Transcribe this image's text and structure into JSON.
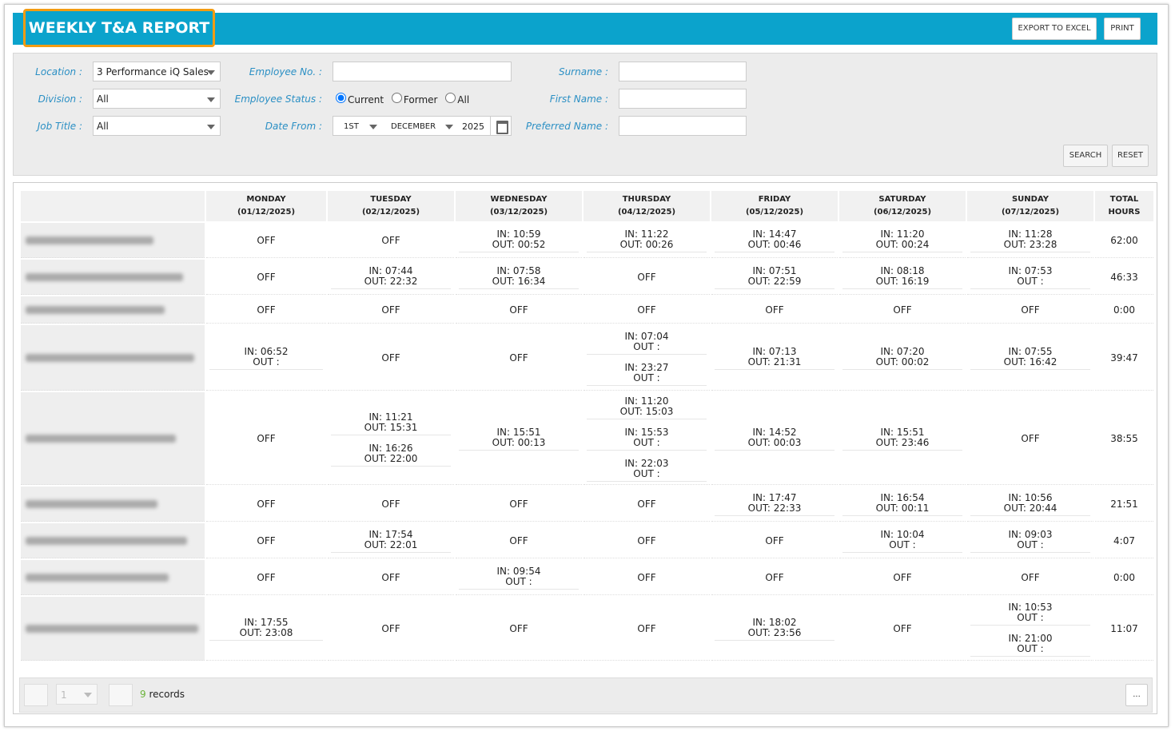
{
  "header": {
    "title": "WEEKLY T&A REPORT",
    "buttons": [
      "EXPORT TO EXCEL",
      "PRINT"
    ]
  },
  "filters": {
    "location": {
      "label": "Location :",
      "value": "3 Performance iQ Sales"
    },
    "division": {
      "label": "Division :",
      "value": "All"
    },
    "job_title": {
      "label": "Job Title :",
      "value": "All"
    },
    "employee_no": {
      "label": "Employee No. :"
    },
    "employee_status": {
      "label": "Employee Status :",
      "options": [
        "Current",
        "Former",
        "All"
      ]
    },
    "date_from": {
      "label": "Date From :",
      "day": "1ST",
      "month": "DECEMBER",
      "year": "2025"
    },
    "surname": {
      "label": "Surname :"
    },
    "first_name": {
      "label": "First Name :"
    },
    "preferred_name": {
      "label": "Preferred Name :"
    },
    "buttons": [
      "SEARCH",
      "RESET"
    ]
  },
  "table": {
    "columns": [
      {
        "day": "MONDAY",
        "date": "(01/12/2025)"
      },
      {
        "day": "TUESDAY",
        "date": "(02/12/2025)"
      },
      {
        "day": "WEDNESDAY",
        "date": "(03/12/2025)"
      },
      {
        "day": "THURSDAY",
        "date": "(04/12/2025)"
      },
      {
        "day": "FRIDAY",
        "date": "(05/12/2025)"
      },
      {
        "day": "SATURDAY",
        "date": "(06/12/2025)"
      },
      {
        "day": "SUNDAY",
        "date": "(07/12/2025)"
      }
    ],
    "total_header": "TOTAL HOURS",
    "rows": [
      {
        "cells": [
          "OFF",
          "OFF",
          [
            [
              "IN: 10:59",
              "OUT: 00:52"
            ]
          ],
          [
            [
              "IN: 11:22",
              "OUT: 00:26"
            ]
          ],
          [
            [
              "IN: 14:47",
              "OUT: 00:46"
            ]
          ],
          [
            [
              "IN: 11:20",
              "OUT: 00:24"
            ]
          ],
          [
            [
              "IN: 11:28",
              "OUT: 23:28"
            ]
          ]
        ],
        "total": "62:00"
      },
      {
        "cells": [
          "OFF",
          [
            [
              "IN: 07:44",
              "OUT: 22:32"
            ]
          ],
          [
            [
              "IN: 07:58",
              "OUT: 16:34"
            ]
          ],
          "OFF",
          [
            [
              "IN: 07:51",
              "OUT: 22:59"
            ]
          ],
          [
            [
              "IN: 08:18",
              "OUT: 16:19"
            ]
          ],
          [
            [
              "IN: 07:53",
              "OUT :"
            ]
          ]
        ],
        "total": "46:33"
      },
      {
        "cells": [
          "OFF",
          "OFF",
          "OFF",
          "OFF",
          "OFF",
          "OFF",
          "OFF"
        ],
        "total": "0:00"
      },
      {
        "cells": [
          [
            [
              "IN: 06:52",
              "OUT :"
            ]
          ],
          "OFF",
          "OFF",
          [
            [
              "IN: 07:04",
              "OUT :"
            ],
            [
              "IN: 23:27",
              "OUT :"
            ]
          ],
          [
            [
              "IN: 07:13",
              "OUT: 21:31"
            ]
          ],
          [
            [
              "IN: 07:20",
              "OUT: 00:02"
            ]
          ],
          [
            [
              "IN: 07:55",
              "OUT: 16:42"
            ]
          ]
        ],
        "total": "39:47"
      },
      {
        "cells": [
          "OFF",
          [
            [
              "IN: 11:21",
              "OUT: 15:31"
            ],
            [
              "IN: 16:26",
              "OUT: 22:00"
            ]
          ],
          [
            [
              "IN: 15:51",
              "OUT: 00:13"
            ]
          ],
          [
            [
              "IN: 11:20",
              "OUT: 15:03"
            ],
            [
              "IN: 15:53",
              "OUT :"
            ],
            [
              "IN: 22:03",
              "OUT :"
            ]
          ],
          [
            [
              "IN: 14:52",
              "OUT: 00:03"
            ]
          ],
          [
            [
              "IN: 15:51",
              "OUT: 23:46"
            ]
          ],
          "OFF"
        ],
        "total": "38:55"
      },
      {
        "cells": [
          "OFF",
          "OFF",
          "OFF",
          "OFF",
          [
            [
              "IN: 17:47",
              "OUT: 22:33"
            ]
          ],
          [
            [
              "IN: 16:54",
              "OUT: 00:11"
            ]
          ],
          [
            [
              "IN: 10:56",
              "OUT: 20:44"
            ]
          ]
        ],
        "total": "21:51"
      },
      {
        "cells": [
          "OFF",
          [
            [
              "IN: 17:54",
              "OUT: 22:01"
            ]
          ],
          "OFF",
          "OFF",
          "OFF",
          [
            [
              "IN: 10:04",
              "OUT :"
            ]
          ],
          [
            [
              "IN: 09:03",
              "OUT :"
            ]
          ]
        ],
        "total": "4:07"
      },
      {
        "cells": [
          "OFF",
          "OFF",
          [
            [
              "IN: 09:54",
              "OUT :"
            ]
          ],
          "OFF",
          "OFF",
          "OFF",
          "OFF"
        ],
        "total": "0:00"
      },
      {
        "cells": [
          [
            [
              "IN: 17:55",
              "OUT: 23:08"
            ]
          ],
          "OFF",
          "OFF",
          "OFF",
          [
            [
              "IN: 18:02",
              "OUT: 23:56"
            ]
          ],
          "OFF",
          [
            [
              "IN: 10:53",
              "OUT :"
            ],
            [
              "IN: 21:00",
              "OUT :"
            ]
          ]
        ],
        "total": "11:07"
      }
    ]
  },
  "footer": {
    "page": "1",
    "count": "9",
    "records": "records",
    "more": "..."
  }
}
